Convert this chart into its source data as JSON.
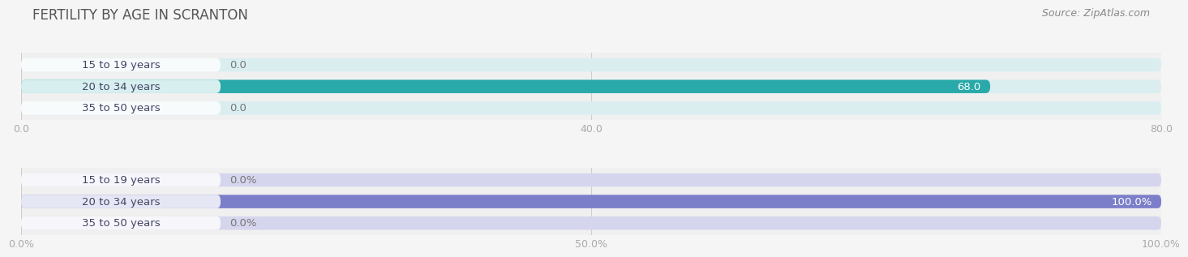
{
  "title": "FERTILITY BY AGE IN SCRANTON",
  "source": "Source: ZipAtlas.com",
  "top_chart": {
    "categories": [
      "15 to 19 years",
      "20 to 34 years",
      "35 to 50 years"
    ],
    "values": [
      0.0,
      68.0,
      0.0
    ],
    "xlim": [
      0,
      80.0
    ],
    "xticks": [
      0.0,
      40.0,
      80.0
    ],
    "xticklabels": [
      "0.0",
      "40.0",
      "80.0"
    ],
    "bar_color_full": "#29a9a9",
    "bar_color_empty": "#daeef0",
    "bar_height": 0.62
  },
  "bottom_chart": {
    "categories": [
      "15 to 19 years",
      "20 to 34 years",
      "35 to 50 years"
    ],
    "values": [
      0.0,
      100.0,
      0.0
    ],
    "xlim": [
      0,
      100.0
    ],
    "xticks": [
      0.0,
      50.0,
      100.0
    ],
    "xticklabels": [
      "0.0%",
      "50.0%",
      "100.0%"
    ],
    "bar_color_full": "#7b7ec8",
    "bar_color_empty": "#d5d5ee",
    "bar_height": 0.62
  },
  "fig_bg": "#f5f5f5",
  "axes_bg": "#f0f0f0",
  "title_color": "#555555",
  "source_color": "#888888",
  "tick_color": "#aaaaaa",
  "label_fontsize": 9.5,
  "title_fontsize": 12,
  "source_fontsize": 9,
  "label_pill_alpha": 0.82,
  "label_text_color": "#444466"
}
